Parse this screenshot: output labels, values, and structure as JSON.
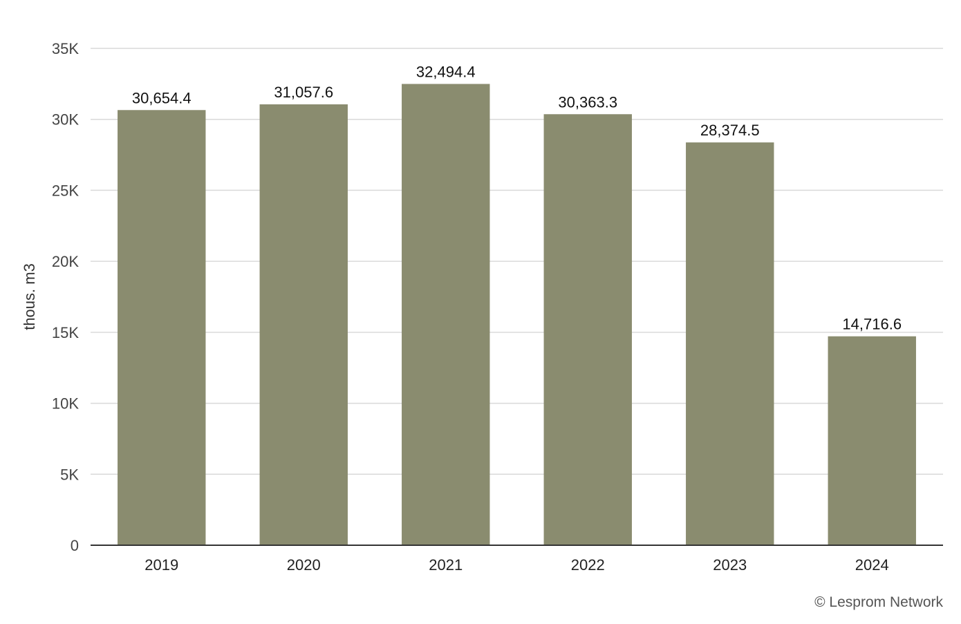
{
  "chart_data": {
    "type": "bar",
    "categories": [
      "2019",
      "2020",
      "2021",
      "2022",
      "2023",
      "2024"
    ],
    "values": [
      30654.4,
      31057.6,
      32494.4,
      30363.3,
      28374.5,
      14716.6
    ],
    "value_labels": [
      "30,654.4",
      "31,057.6",
      "32,494.4",
      "30,363.3",
      "28,374.5",
      "14,716.6"
    ],
    "title": "",
    "xlabel": "",
    "ylabel": "thous. m3",
    "ylim": [
      0,
      35000
    ],
    "yticks": [
      0,
      5000,
      10000,
      15000,
      20000,
      25000,
      30000,
      35000
    ],
    "ytick_labels": [
      "0",
      "5K",
      "10K",
      "15K",
      "20K",
      "25K",
      "30K",
      "35K"
    ],
    "grid": true,
    "bar_color": "#8a8c6f",
    "legend": "none"
  },
  "credit": "© Lesprom Network"
}
